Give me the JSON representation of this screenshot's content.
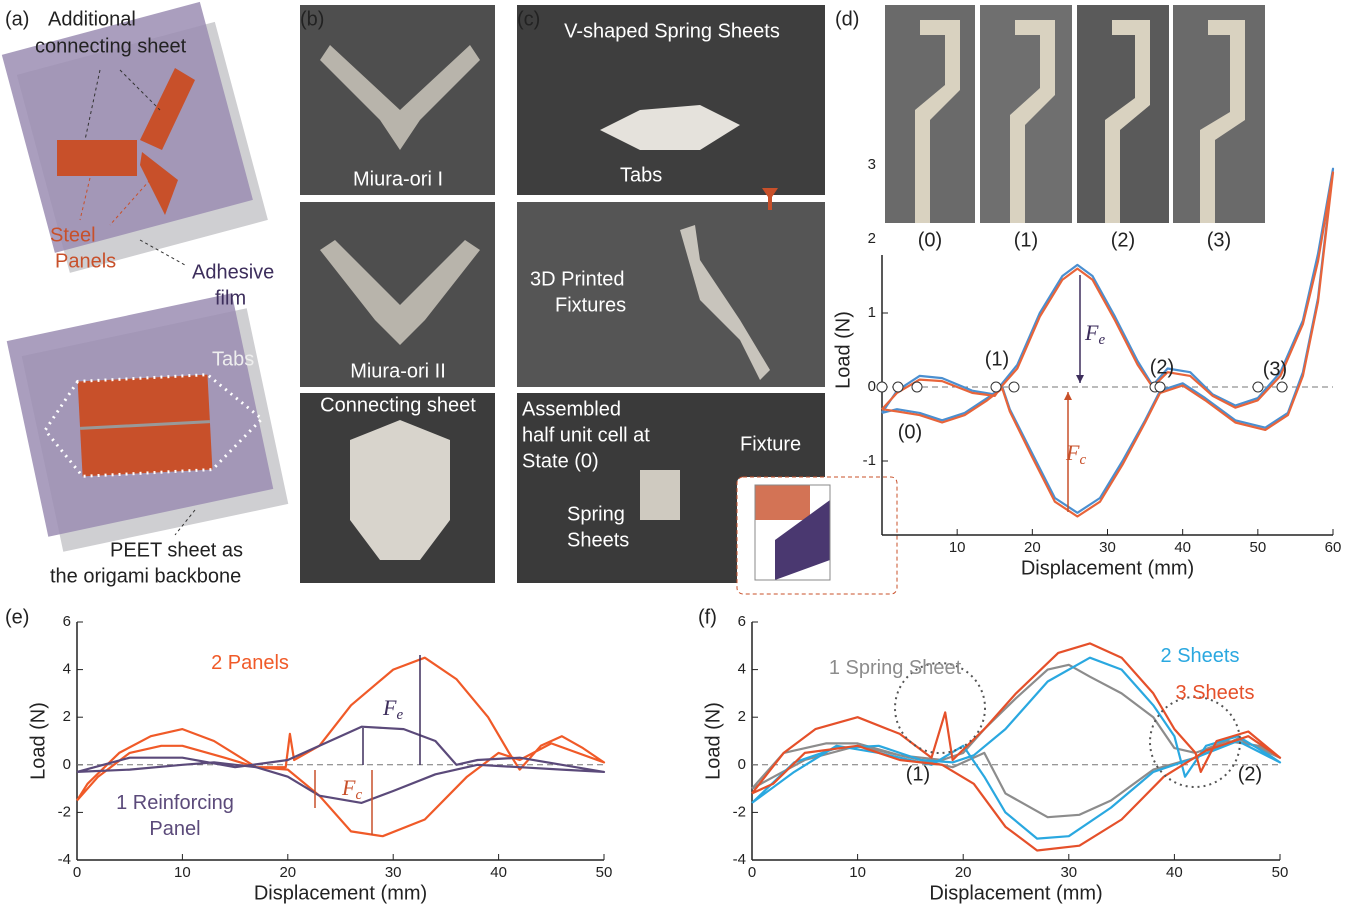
{
  "figure": {
    "a": {
      "label": "(a)",
      "additional_connecting_sheet": [
        "Additional",
        "connecting sheet"
      ],
      "steel_panels": [
        "Steel",
        "Panels"
      ],
      "adhesive_film": [
        "Adhesive",
        "film"
      ],
      "tabs": "Tabs",
      "peet_sheet": [
        "PEET sheet as",
        "the origami backbone"
      ]
    },
    "b": {
      "label": "(b)",
      "photos": [
        "Miura-ori I",
        "Miura-ori II",
        "Connecting sheet"
      ]
    },
    "c": {
      "label": "(c)",
      "v_shaped": "V-shaped Spring Sheets",
      "tabs": "Tabs",
      "fixtures": [
        "3D Printed",
        "Fixtures"
      ],
      "assembled": [
        "Assembled",
        "half unit cell at",
        "State (0)"
      ],
      "fixture": "Fixture",
      "spring_sheets": [
        "Spring",
        "Sheets"
      ]
    },
    "d": {
      "label": "(d)",
      "photos": [
        "(0)",
        "(1)",
        "(2)",
        "(3)"
      ]
    },
    "e": {
      "label": "(e)"
    },
    "f": {
      "label": "(f)"
    }
  },
  "chart_data": [
    {
      "type": "line",
      "xlabel": "Displacement (mm)",
      "ylabel": "Load (N)",
      "xlim": [
        0,
        60
      ],
      "ylim": [
        -2,
        3
      ],
      "xticks": [
        10,
        20,
        30,
        40,
        50,
        60
      ],
      "yticks": [
        -1,
        0,
        1,
        2,
        3
      ],
      "zero_line": true,
      "series": [
        {
          "color": "#4a8fd0",
          "x": [
            0,
            2,
            5,
            8,
            12,
            15,
            16,
            18,
            21,
            24,
            26,
            28,
            31,
            34,
            36,
            38,
            41,
            44,
            47,
            50,
            53,
            56,
            58,
            60,
            58,
            56,
            54,
            51,
            47,
            43,
            40,
            37,
            35,
            32,
            29,
            26,
            23,
            20,
            17,
            16,
            14,
            11,
            8,
            5,
            2,
            0
          ],
          "values": [
            -0.35,
            -0.05,
            0.15,
            0.12,
            -0.05,
            -0.1,
            0.05,
            0.3,
            1.0,
            1.5,
            1.65,
            1.5,
            0.95,
            0.35,
            0.02,
            0.25,
            0.2,
            -0.1,
            -0.25,
            -0.15,
            0.2,
            0.9,
            1.8,
            2.95,
            1.2,
            0.2,
            -0.35,
            -0.55,
            -0.45,
            -0.15,
            0.05,
            -0.05,
            -0.45,
            -1.0,
            -1.5,
            -1.7,
            -1.5,
            -0.9,
            -0.3,
            0,
            -0.15,
            -0.35,
            -0.45,
            -0.35,
            -0.3,
            -0.35
          ]
        },
        {
          "color": "#e8643a",
          "x": [
            0,
            2,
            5,
            8,
            12,
            15,
            16,
            18,
            21,
            24,
            26,
            28,
            31,
            34,
            36,
            38,
            41,
            44,
            47,
            50,
            53,
            56,
            58,
            60,
            58,
            56,
            54,
            51,
            47,
            43,
            40,
            37,
            35,
            32,
            29,
            26,
            23,
            20,
            17,
            16,
            14,
            11,
            8,
            5,
            2,
            0
          ],
          "values": [
            -0.3,
            -0.08,
            0.1,
            0.08,
            -0.08,
            -0.12,
            0.02,
            0.25,
            0.95,
            1.45,
            1.6,
            1.45,
            0.9,
            0.3,
            0,
            0.2,
            0.15,
            -0.12,
            -0.28,
            -0.18,
            0.15,
            0.85,
            1.7,
            2.9,
            1.15,
            0.15,
            -0.38,
            -0.58,
            -0.48,
            -0.18,
            0.02,
            -0.08,
            -0.48,
            -1.05,
            -1.55,
            -1.75,
            -1.55,
            -0.95,
            -0.33,
            -0.02,
            -0.18,
            -0.38,
            -0.48,
            -0.38,
            -0.33,
            -0.3
          ]
        }
      ],
      "annotations": [
        "(1)",
        "(2)",
        "(3)",
        "(0)"
      ],
      "force_labels": [
        {
          "symbol": "F",
          "sub": "e"
        },
        {
          "symbol": "F",
          "sub": "c"
        }
      ]
    },
    {
      "type": "line",
      "xlabel": "Displacement (mm)",
      "ylabel": "Load (N)",
      "xlim": [
        0,
        50
      ],
      "ylim": [
        -4,
        6
      ],
      "xticks": [
        0,
        10,
        20,
        30,
        40,
        50
      ],
      "yticks": [
        -4,
        -2,
        0,
        2,
        4,
        6
      ],
      "zero_line": true,
      "series": [
        {
          "name": "2 Panels",
          "color": "#f05a28",
          "x": [
            0,
            2,
            5,
            8,
            10,
            14,
            17,
            19.8,
            20.2,
            20.6,
            23,
            26,
            30,
            33,
            36,
            39,
            41,
            42,
            44,
            46,
            48,
            50,
            45,
            42,
            40,
            37,
            33,
            29,
            26,
            23,
            20,
            17,
            13,
            10,
            7,
            4,
            1,
            0
          ],
          "values": [
            -1.5,
            -0.5,
            0.5,
            0.8,
            0.8,
            0.3,
            -0.1,
            -0.1,
            1.3,
            0.2,
            0.8,
            2.5,
            4.0,
            4.5,
            3.6,
            2.0,
            0.5,
            -0.2,
            0.8,
            1.2,
            0.7,
            0.1,
            0.9,
            0.2,
            0.5,
            -0.5,
            -2.3,
            -3.0,
            -2.8,
            -1.3,
            -0.2,
            -0.1,
            1.0,
            1.5,
            1.2,
            0.5,
            -0.8,
            -1.5
          ]
        },
        {
          "name": "1 Reinforcing Panel",
          "color": "#5b4a7a",
          "x": [
            0,
            5,
            10,
            15,
            20,
            24,
            27,
            31,
            34,
            36,
            38,
            42,
            46,
            50,
            46,
            42,
            38,
            34,
            30,
            27,
            23,
            20,
            17,
            13,
            10,
            5,
            0
          ],
          "values": [
            -0.3,
            0.3,
            0.3,
            -0.1,
            0.2,
            1.0,
            1.6,
            1.5,
            1.0,
            0.0,
            0.2,
            0.3,
            0.0,
            -0.3,
            -0.2,
            -0.1,
            0.0,
            -0.4,
            -1.1,
            -1.6,
            -1.3,
            -0.5,
            -0.1,
            0.1,
            0.0,
            -0.2,
            -0.3
          ]
        }
      ],
      "force_labels": [
        {
          "symbol": "F",
          "sub": "e"
        },
        {
          "symbol": "F",
          "sub": "c"
        }
      ]
    },
    {
      "type": "line",
      "xlabel": "Displacement (mm)",
      "ylabel": "Load (N)",
      "xlim": [
        0,
        50
      ],
      "ylim": [
        -4,
        6
      ],
      "xticks": [
        0,
        10,
        20,
        30,
        40,
        50
      ],
      "yticks": [
        -4,
        -2,
        0,
        2,
        4,
        6
      ],
      "zero_line": true,
      "series": [
        {
          "name": "1 Spring Sheet",
          "color": "#8c8c8c",
          "x": [
            0,
            3,
            7,
            10,
            14,
            18,
            20,
            22,
            25,
            28,
            30,
            32,
            35,
            38,
            40,
            42,
            45,
            48,
            50,
            46,
            42,
            38,
            34,
            31,
            28,
            24,
            22,
            19,
            15,
            10,
            5,
            0
          ],
          "values": [
            -1,
            0.5,
            0.9,
            0.9,
            0.4,
            0.2,
            0.5,
            1.5,
            2.8,
            4.0,
            4.2,
            3.7,
            3.0,
            2.0,
            0.7,
            0.5,
            1.0,
            0.8,
            0.3,
            1.1,
            0.3,
            -0.2,
            -1.5,
            -2.1,
            -2.2,
            -1.2,
            0.5,
            -0.1,
            0.3,
            0.8,
            0.2,
            -1
          ]
        },
        {
          "name": "2 Sheets",
          "color": "#2aa8e0",
          "x": [
            0,
            4,
            8,
            12,
            16,
            19,
            21,
            24,
            28,
            32,
            35,
            38,
            40,
            41,
            43,
            46,
            49,
            50,
            46,
            42,
            38,
            34,
            30,
            27,
            24,
            22,
            20,
            17,
            12,
            8,
            4,
            0
          ],
          "values": [
            -1.6,
            0.1,
            0.7,
            0.8,
            0.2,
            0.1,
            0.4,
            1.5,
            3.5,
            4.5,
            4.0,
            2.5,
            1.2,
            -0.5,
            0.8,
            1.2,
            0.4,
            0.1,
            1.0,
            0.3,
            -0.3,
            -1.8,
            -3.0,
            -3.1,
            -2.0,
            -0.5,
            0.8,
            0.0,
            0.5,
            0.8,
            -0.3,
            -1.6
          ]
        },
        {
          "name": "3 Sheets",
          "color": "#e5502a",
          "x": [
            0,
            3,
            6,
            10,
            14,
            17,
            18.3,
            19,
            22,
            25,
            29,
            32,
            35,
            38,
            40,
            42,
            42.5,
            44,
            47,
            50,
            47,
            43,
            39,
            35,
            31,
            27,
            24,
            21,
            18,
            14,
            10,
            5,
            2,
            0
          ],
          "values": [
            -1.2,
            0.5,
            1.5,
            2.0,
            1.3,
            0.3,
            2.2,
            0.2,
            1.5,
            3.0,
            4.7,
            5.1,
            4.5,
            3.0,
            1.5,
            0.5,
            -0.3,
            1.0,
            1.4,
            0.3,
            1.2,
            0.6,
            -0.5,
            -2.3,
            -3.4,
            -3.6,
            -2.6,
            -0.8,
            0.0,
            0.2,
            0.8,
            0.5,
            -0.8,
            -1.2
          ]
        }
      ],
      "annotations": [
        "(1)",
        "(2)"
      ]
    }
  ]
}
